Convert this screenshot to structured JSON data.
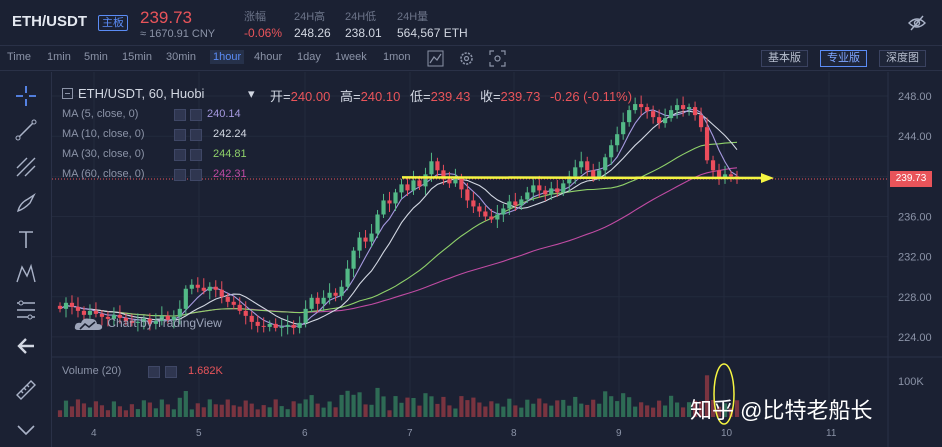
{
  "header": {
    "pair": "ETH/USDT",
    "board": "主板",
    "price": "239.73",
    "cny": "≈ 1670.91 CNY",
    "stats": [
      {
        "label": "涨幅",
        "value": "-0.06%",
        "red": true
      },
      {
        "label": "24H高",
        "value": "248.26",
        "red": false
      },
      {
        "label": "24H低",
        "value": "238.01",
        "red": false
      },
      {
        "label": "24H量",
        "value": "564,567 ETH",
        "red": false
      }
    ]
  },
  "toolbar": {
    "timeframes": [
      "Time",
      "1min",
      "5min",
      "15min",
      "30min",
      "1hour",
      "4hour",
      "1day",
      "1week",
      "1mon"
    ],
    "active_timeframe": "1hour",
    "views": [
      "基本版",
      "专业版",
      "深度图"
    ],
    "active_view": "专业版"
  },
  "chart": {
    "symbol": "ETH/USDT, 60, Huobi",
    "ohlc": [
      {
        "k": "开=",
        "v": "240.00"
      },
      {
        "k": "高=",
        "v": "240.10"
      },
      {
        "k": "低=",
        "v": "239.43"
      },
      {
        "k": "收=",
        "v": "239.73"
      },
      {
        "k": "",
        "v": "-0.26 (-0.11%)"
      }
    ],
    "ma": [
      {
        "label": "MA (5, close, 0)",
        "value": "240.14",
        "color": "#a69ae0"
      },
      {
        "label": "MA (10, close, 0)",
        "value": "242.24",
        "color": "#d2d7e2"
      },
      {
        "label": "MA (30, close, 0)",
        "value": "244.81",
        "color": "#8fd16a"
      },
      {
        "label": "MA (60, close, 0)",
        "value": "242.31",
        "color": "#c04ba3"
      }
    ],
    "volume_label": "Volume (20)",
    "volume_value": "1.682K",
    "current_price_tag": "239.73",
    "tradingview": "Chart by TradingView",
    "watermark": "知乎 @比特老船长",
    "colors": {
      "up": "#53b987",
      "down": "#eb4d5c",
      "annotation": "#f5f542",
      "volume_up": "#2e6b55",
      "volume_down": "#7a3440"
    }
  },
  "chart_data": {
    "type": "candlestick",
    "yticks": [
      "248.00",
      "244.00",
      "240.00",
      "236.00",
      "232.00",
      "228.00",
      "224.00"
    ],
    "y_range": [
      222.2,
      249.6
    ],
    "xticks": [
      "4",
      "5",
      "6",
      "7",
      "8",
      "9",
      "10",
      "11"
    ],
    "volume_tick": "100K",
    "close_series": [
      226.8,
      227.4,
      227.0,
      226.6,
      226.2,
      226.6,
      226.3,
      226.0,
      225.8,
      226.2,
      225.9,
      225.6,
      225.4,
      225.5,
      225.8,
      225.3,
      225.6,
      226.1,
      225.7,
      226.0,
      226.8,
      228.8,
      229.2,
      228.9,
      228.6,
      229.0,
      228.7,
      228.0,
      227.5,
      227.2,
      226.6,
      226.1,
      225.5,
      225.1,
      225.0,
      225.3,
      224.9,
      225.0,
      225.2,
      224.9,
      225.4,
      226.8,
      227.9,
      227.3,
      227.9,
      228.4,
      228.1,
      229.0,
      230.8,
      232.6,
      233.9,
      233.5,
      234.3,
      236.2,
      237.6,
      237.3,
      238.4,
      239.2,
      238.6,
      239.6,
      239.0,
      240.2,
      241.5,
      240.6,
      239.7,
      239.3,
      239.8,
      238.7,
      237.6,
      237.0,
      236.5,
      236.0,
      235.7,
      236.2,
      236.8,
      237.5,
      237.1,
      237.7,
      238.4,
      239.1,
      238.6,
      238.2,
      238.8,
      238.4,
      239.3,
      240.0,
      240.9,
      241.5,
      240.6,
      239.9,
      240.6,
      241.9,
      243.1,
      244.2,
      245.4,
      246.6,
      247.2,
      246.9,
      246.5,
      245.9,
      245.3,
      245.8,
      246.6,
      247.1,
      246.7,
      246.9,
      246.1,
      244.9,
      241.6,
      240.6,
      239.9,
      240.2,
      240.0,
      239.7
    ]
  }
}
